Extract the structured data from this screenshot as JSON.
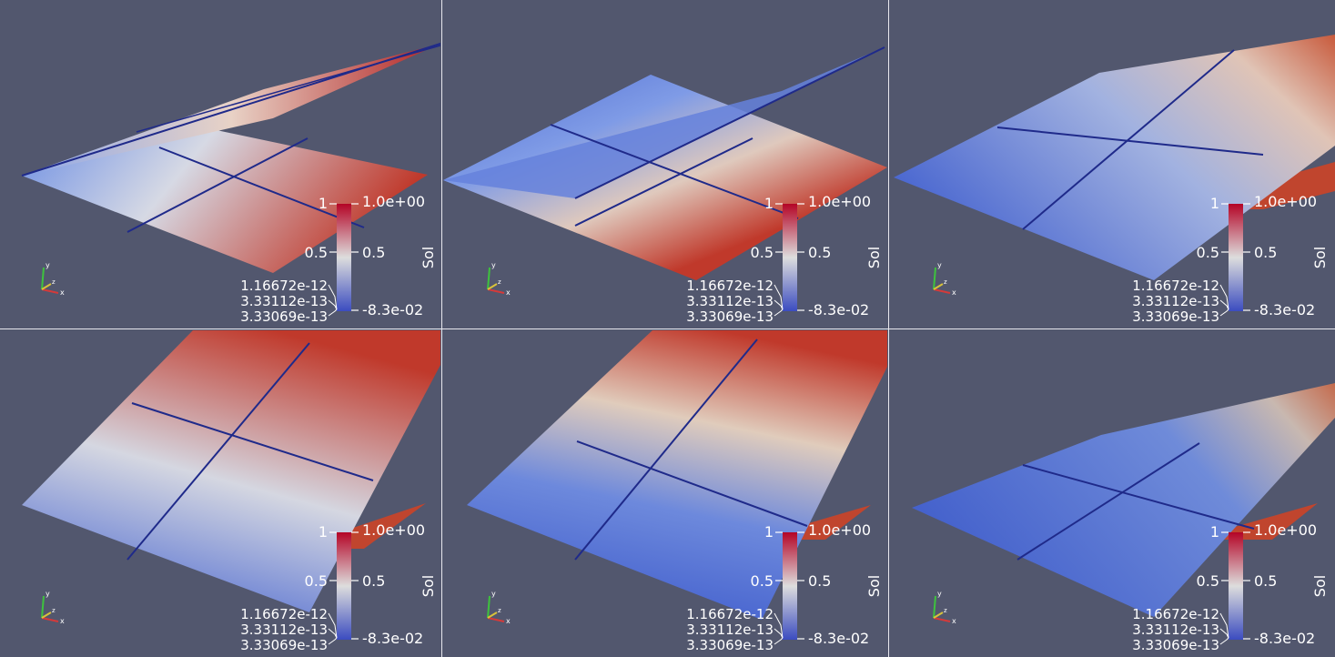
{
  "colorbar": {
    "title": "Sol",
    "max_label": "1.0e+00",
    "mid_label": "0.5",
    "min_label": "-8.3e-02",
    "ann_top": "1",
    "ann_mid": "0.5",
    "ann_a": "1.16672e-12",
    "ann_b": "3.33112e-13",
    "ann_c": "3.33069e-13",
    "range": [
      -0.083,
      1.0
    ],
    "colormap": [
      "#3b4cc0",
      "#dddddd",
      "#b40426"
    ]
  },
  "background_color": "#52576e",
  "axes_triad": [
    "x",
    "y",
    "z"
  ],
  "views": [
    {
      "name": "view-1"
    },
    {
      "name": "view-2"
    },
    {
      "name": "view-3"
    },
    {
      "name": "view-4"
    },
    {
      "name": "view-5"
    },
    {
      "name": "view-6"
    }
  ]
}
